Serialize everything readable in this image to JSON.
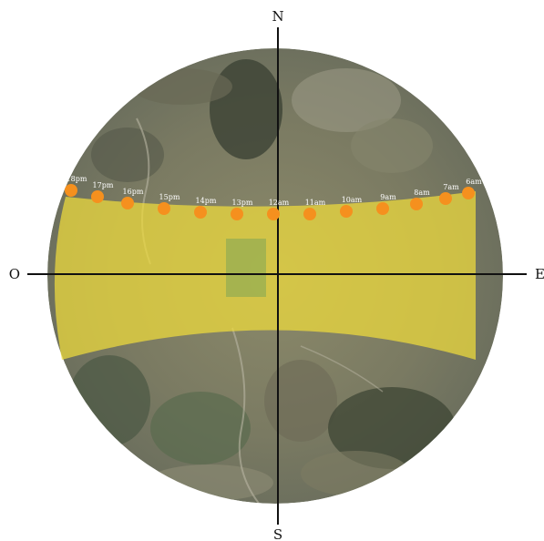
{
  "compass": {
    "north": "N",
    "south": "S",
    "east": "E",
    "west": "O"
  },
  "sun_path": {
    "hours": [
      "18pm",
      "17pm",
      "16pm",
      "15pm",
      "14pm",
      "13pm",
      "12am",
      "11am",
      "10am",
      "9am",
      "8am",
      "7am",
      "6am"
    ]
  },
  "colors": {
    "band": "#f0dc3c",
    "sun_marker": "#f5901e",
    "axis": "#111111",
    "hour_label": "#ffffff"
  }
}
